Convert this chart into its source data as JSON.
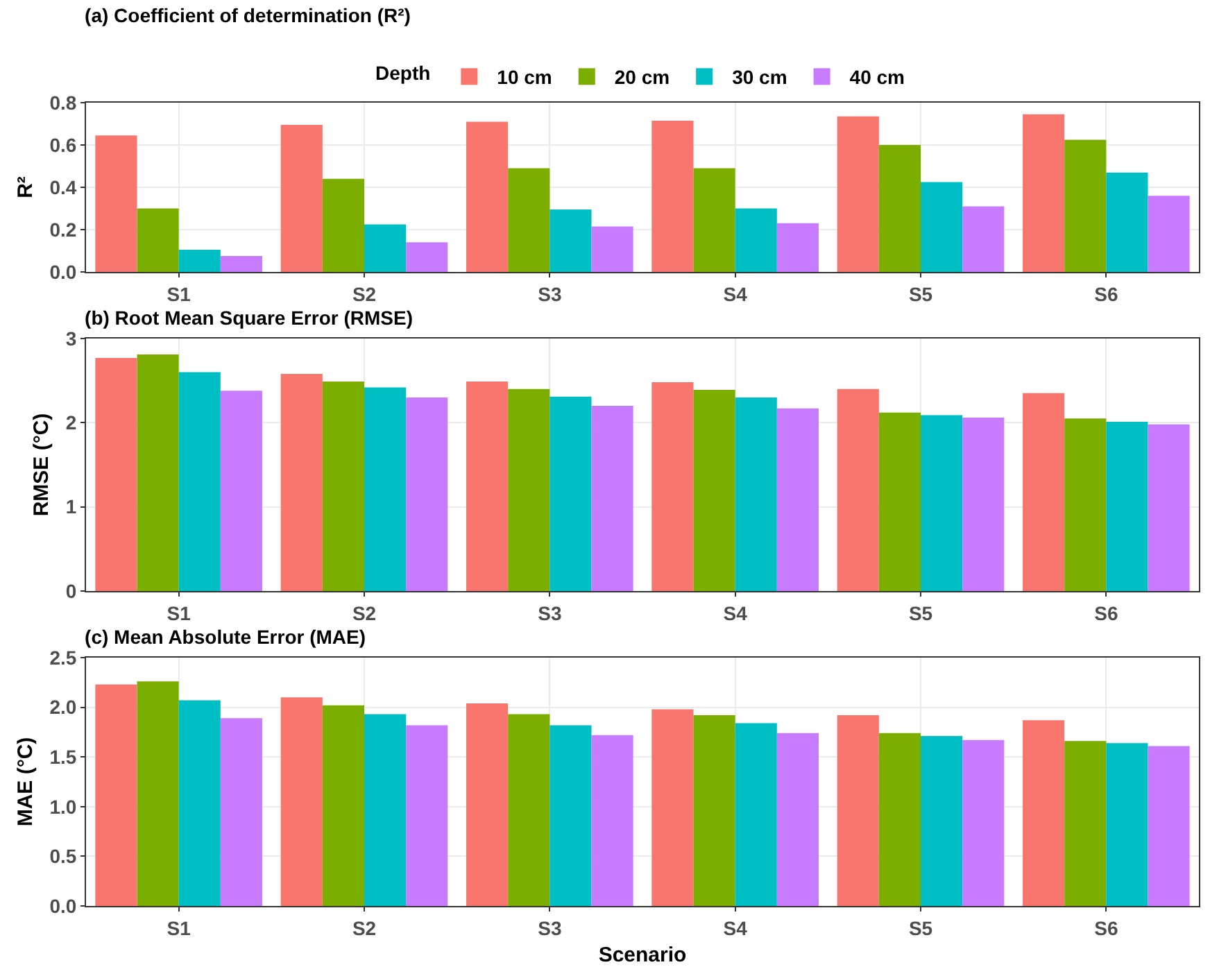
{
  "chart_data": [
    {
      "type": "bar",
      "title": "(a) Coefficient of determination (R²)",
      "ylabel": "R²",
      "legend_title": "Depth",
      "legend": "top",
      "grid": true,
      "categories": [
        "S1",
        "S2",
        "S3",
        "S4",
        "S5",
        "S6"
      ],
      "ylim": [
        0,
        0.8
      ],
      "yticks": [
        {
          "value": 0,
          "label": "0.0"
        },
        0.2,
        0.4,
        0.6,
        0.8
      ],
      "series": [
        {
          "name": "10 cm",
          "color": "#f8766d",
          "values": [
            0.645,
            0.695,
            0.71,
            0.715,
            0.735,
            0.745
          ]
        },
        {
          "name": "20 cm",
          "color": "#7cae00",
          "values": [
            0.3,
            0.44,
            0.49,
            0.49,
            0.6,
            0.625
          ]
        },
        {
          "name": "30 cm",
          "color": "#00bfc4",
          "values": [
            0.105,
            0.225,
            0.295,
            0.3,
            0.425,
            0.47
          ]
        },
        {
          "name": "40 cm",
          "color": "#c77cff",
          "values": [
            0.075,
            0.14,
            0.215,
            0.23,
            0.31,
            0.36
          ]
        }
      ]
    },
    {
      "type": "bar",
      "title": "(b) Root Mean Square Error (RMSE)",
      "ylabel": "RMSE (°C)",
      "grid": true,
      "categories": [
        "S1",
        "S2",
        "S3",
        "S4",
        "S5",
        "S6"
      ],
      "ylim": [
        0,
        3
      ],
      "yticks": [
        0,
        1,
        2,
        3
      ],
      "series": [
        {
          "color": "#f8766d",
          "values": [
            2.77,
            2.58,
            2.49,
            2.48,
            2.4,
            2.35
          ]
        },
        {
          "color": "#7cae00",
          "values": [
            2.81,
            2.49,
            2.4,
            2.39,
            2.12,
            2.05
          ]
        },
        {
          "color": "#00bfc4",
          "values": [
            2.6,
            2.42,
            2.31,
            2.3,
            2.09,
            2.01
          ]
        },
        {
          "color": "#c77cff",
          "values": [
            2.38,
            2.3,
            2.2,
            2.17,
            2.06,
            1.98
          ]
        }
      ]
    },
    {
      "type": "bar",
      "title": "(c) Mean Absolute Error (MAE)",
      "ylabel": "MAE (°C)",
      "xlabel": "Scenario",
      "grid": true,
      "categories": [
        "S1",
        "S2",
        "S3",
        "S4",
        "S5",
        "S6"
      ],
      "ylim": [
        0,
        2.5
      ],
      "yticks": [
        {
          "value": 0,
          "label": "0.0"
        },
        0.5,
        {
          "value": 1,
          "label": "1.0"
        },
        1.5,
        {
          "value": 2,
          "label": "2.0"
        },
        2.5
      ],
      "series": [
        {
          "color": "#f8766d",
          "values": [
            2.23,
            2.1,
            2.04,
            1.98,
            1.92,
            1.87
          ]
        },
        {
          "color": "#7cae00",
          "values": [
            2.26,
            2.02,
            1.93,
            1.92,
            1.74,
            1.66
          ]
        },
        {
          "color": "#00bfc4",
          "values": [
            2.07,
            1.93,
            1.82,
            1.84,
            1.71,
            1.64
          ]
        },
        {
          "color": "#c77cff",
          "values": [
            1.89,
            1.82,
            1.72,
            1.74,
            1.67,
            1.61
          ]
        }
      ]
    }
  ]
}
